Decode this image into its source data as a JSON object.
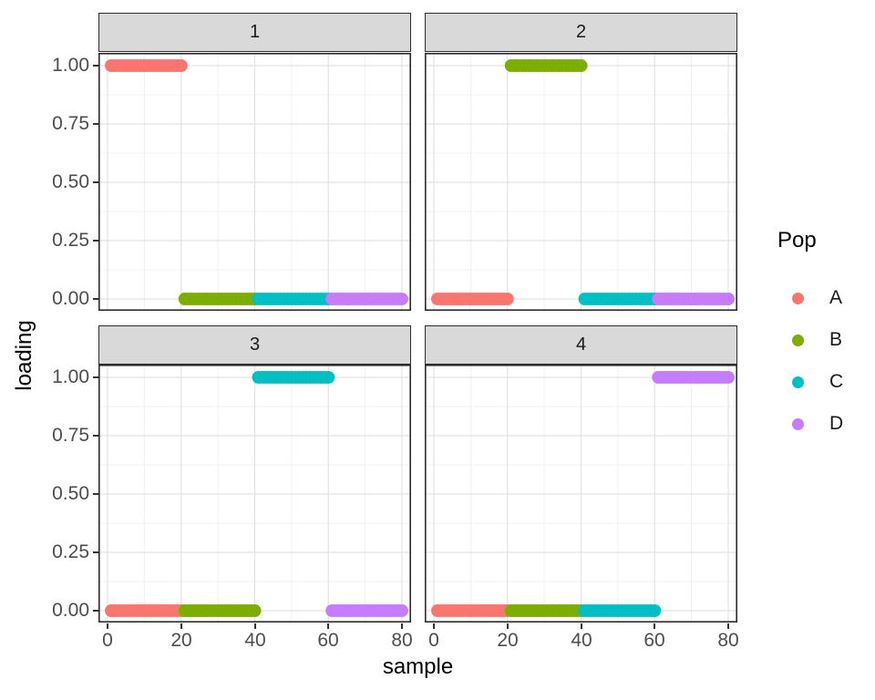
{
  "chart_data": {
    "type": "scatter",
    "description": "Faceted admixture-style loading plot: four facets (components 1-4), points drawn as dense dot runs at loading 0 or 1",
    "xlabel": "sample",
    "ylabel": "loading",
    "xlim": [
      0,
      80
    ],
    "ylim": [
      0,
      1
    ],
    "x_ticks": [
      "0",
      "20",
      "40",
      "60",
      "80"
    ],
    "x_tick_values": [
      0,
      20,
      40,
      60,
      80
    ],
    "y_ticks_top_to_bottom": [
      "1.00",
      "0.75",
      "0.50",
      "0.25",
      "0.00"
    ],
    "y_tick_values_top_to_bottom": [
      1.0,
      0.75,
      0.5,
      0.25,
      0.0
    ],
    "grid": {
      "major": true,
      "minor": true,
      "major_color": "#e2e2e2",
      "minor_color": "#f0f0f0",
      "panel_background": "#ffffff",
      "strip_background": "#d9d9d9"
    },
    "legend": {
      "title": "Pop",
      "position": "right",
      "entries": [
        {
          "label": "A",
          "color": "#F8766D"
        },
        {
          "label": "B",
          "color": "#7CAE00"
        },
        {
          "label": "C",
          "color": "#00BFC4"
        },
        {
          "label": "D",
          "color": "#C77CFF"
        }
      ]
    },
    "facets": [
      {
        "label": "1",
        "series": [
          {
            "pop": "A",
            "samples_from": 1,
            "samples_to": 20,
            "loading": 1
          },
          {
            "pop": "B",
            "samples_from": 21,
            "samples_to": 40,
            "loading": 0
          },
          {
            "pop": "C",
            "samples_from": 41,
            "samples_to": 60,
            "loading": 0
          },
          {
            "pop": "D",
            "samples_from": 61,
            "samples_to": 80,
            "loading": 0
          }
        ]
      },
      {
        "label": "2",
        "series": [
          {
            "pop": "A",
            "samples_from": 1,
            "samples_to": 20,
            "loading": 0
          },
          {
            "pop": "B",
            "samples_from": 21,
            "samples_to": 40,
            "loading": 1
          },
          {
            "pop": "C",
            "samples_from": 41,
            "samples_to": 60,
            "loading": 0
          },
          {
            "pop": "D",
            "samples_from": 61,
            "samples_to": 80,
            "loading": 0
          }
        ]
      },
      {
        "label": "3",
        "series": [
          {
            "pop": "A",
            "samples_from": 1,
            "samples_to": 20,
            "loading": 0
          },
          {
            "pop": "B",
            "samples_from": 21,
            "samples_to": 40,
            "loading": 0
          },
          {
            "pop": "C",
            "samples_from": 41,
            "samples_to": 60,
            "loading": 1
          },
          {
            "pop": "D",
            "samples_from": 61,
            "samples_to": 80,
            "loading": 0
          }
        ]
      },
      {
        "label": "4",
        "series": [
          {
            "pop": "A",
            "samples_from": 1,
            "samples_to": 20,
            "loading": 0
          },
          {
            "pop": "B",
            "samples_from": 21,
            "samples_to": 40,
            "loading": 0
          },
          {
            "pop": "C",
            "samples_from": 41,
            "samples_to": 60,
            "loading": 0
          },
          {
            "pop": "D",
            "samples_from": 61,
            "samples_to": 80,
            "loading": 1
          }
        ]
      }
    ]
  }
}
